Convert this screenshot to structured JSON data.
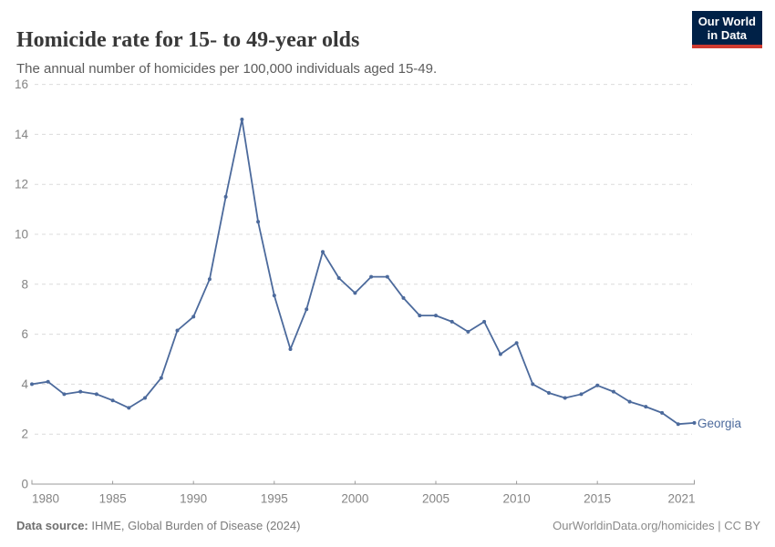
{
  "header": {
    "logo": {
      "line1": "Our World",
      "line2": "in Data",
      "bg": "#002147",
      "accent": "#cf3a30"
    }
  },
  "chart_data": {
    "type": "line",
    "title": "Homicide rate for 15- to 49-year olds",
    "subtitle": "The annual number of homicides per 100,000 individuals aged 15-49.",
    "xlabel": "",
    "ylabel": "",
    "xlim": [
      1980,
      2021
    ],
    "ylim": [
      0,
      16
    ],
    "yticks": [
      0,
      2,
      4,
      6,
      8,
      10,
      12,
      14,
      16
    ],
    "xticks": [
      1980,
      1985,
      1990,
      1995,
      2000,
      2005,
      2010,
      2015,
      2021
    ],
    "grid": "horizontal-dashed",
    "legend": "inline-end-label",
    "colors": {
      "line": "#4c6a9c",
      "grid": "#dcdcdc",
      "axis": "#9a9a9a",
      "tick_label": "#848484"
    },
    "series": [
      {
        "name": "Georgia",
        "color": "#4c6a9c",
        "x": [
          1980,
          1981,
          1982,
          1983,
          1984,
          1985,
          1986,
          1987,
          1988,
          1989,
          1990,
          1991,
          1992,
          1993,
          1994,
          1995,
          1996,
          1997,
          1998,
          1999,
          2000,
          2001,
          2002,
          2003,
          2004,
          2005,
          2006,
          2007,
          2008,
          2009,
          2010,
          2011,
          2012,
          2013,
          2014,
          2015,
          2016,
          2017,
          2018,
          2019,
          2020,
          2021
        ],
        "values": [
          4.0,
          4.1,
          3.6,
          3.7,
          3.6,
          3.35,
          3.05,
          3.45,
          4.25,
          6.15,
          6.7,
          8.2,
          11.5,
          14.6,
          10.5,
          7.55,
          5.4,
          7.0,
          9.3,
          8.25,
          7.65,
          8.3,
          8.3,
          7.45,
          6.75,
          6.75,
          6.5,
          6.1,
          6.5,
          5.2,
          5.65,
          4.0,
          3.65,
          3.45,
          3.6,
          3.95,
          3.7,
          3.3,
          3.1,
          2.85,
          2.4,
          2.45
        ]
      }
    ]
  },
  "footer": {
    "source_label": "Data source:",
    "source_text": " IHME, Global Burden of Disease (2024)",
    "credit": "OurWorldinData.org/homicides | CC BY"
  }
}
